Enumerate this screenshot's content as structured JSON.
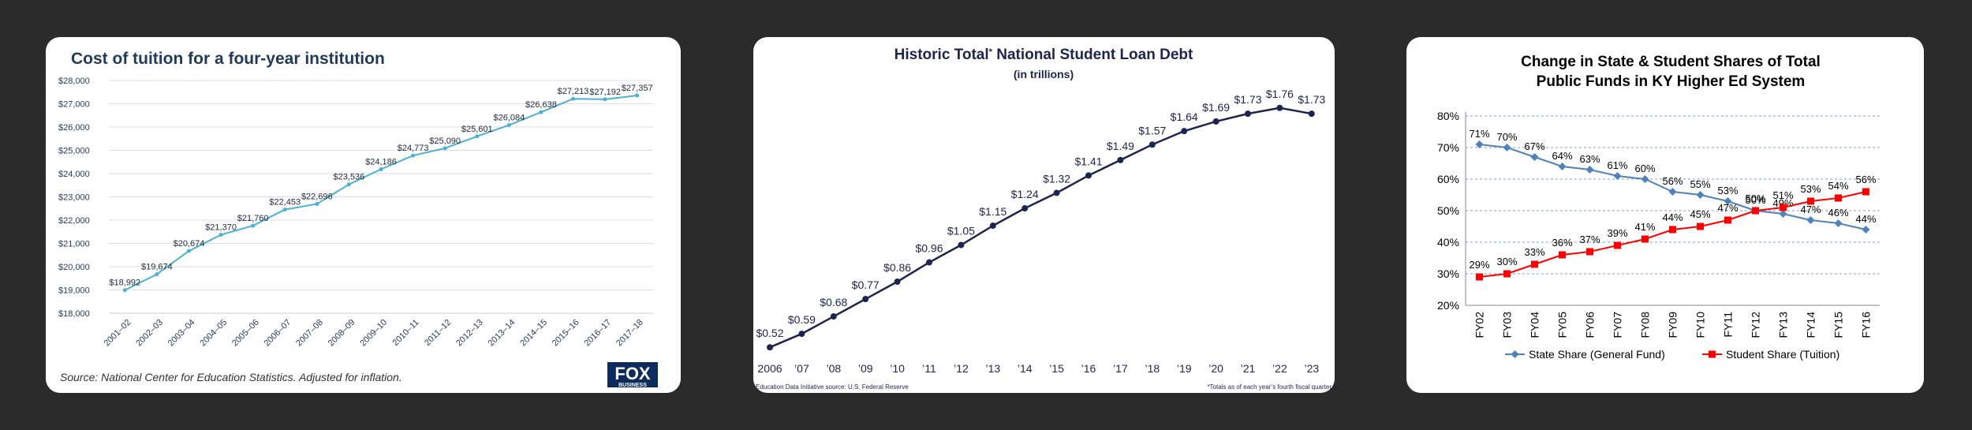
{
  "chart_data": [
    {
      "type": "line",
      "title": "Cost of tuition for a four-year institution",
      "source": "Source: National Center for Education Statistics. Adjusted for inflation.",
      "logo": {
        "text_top": "FOX",
        "text_bottom": "BUSINESS"
      },
      "categories": [
        "2001–02",
        "2002–03",
        "2003–04",
        "2004–05",
        "2005–06",
        "2006–07",
        "2007–08",
        "2008–09",
        "2009–10",
        "2010–11",
        "2011–12",
        "2012–13",
        "2013–14",
        "2014–15",
        "2015–16",
        "2016–17",
        "2017–18"
      ],
      "values": [
        18992,
        19674,
        20674,
        21370,
        21760,
        22453,
        22696,
        23536,
        24186,
        24773,
        25090,
        25601,
        26084,
        26638,
        27213,
        27192,
        27357
      ],
      "data_labels": [
        "$18,992",
        "$19,674",
        "$20,674",
        "$21,370",
        "$21,760",
        "$22,453",
        "$22,696",
        "$23,536",
        "$24,186",
        "$24,773",
        "$25,090",
        "$25,601",
        "$26,084",
        "$26,638",
        "$27,213",
        "$27,192",
        "$27,357"
      ],
      "yticks": [
        18000,
        19000,
        20000,
        21000,
        22000,
        23000,
        24000,
        25000,
        26000,
        27000,
        28000
      ],
      "ytick_labels": [
        "$18,000",
        "$19,000",
        "$20,000",
        "$21,000",
        "$22,000",
        "$23,000",
        "$24,000",
        "$25,000",
        "$26,000",
        "$27,000",
        "$28,000"
      ],
      "ylim": [
        18000,
        28000
      ],
      "grid": true,
      "colors": {
        "line": "#4ab0d6",
        "title": "#1f3a5c"
      }
    },
    {
      "type": "line",
      "title": "Historic Total",
      "title_marker": "*",
      "title_suffix": "National Student Loan Debt",
      "subtitle": "(in trillions)",
      "source_left": "Education Data Initiative source: U.S. Federal Reserve",
      "source_right": "*Totals as of each year’s fourth fiscal quarter",
      "categories": [
        "2006",
        "’07",
        "’08",
        "’09",
        "’10",
        "’11",
        "’12",
        "’13",
        "’14",
        "’15",
        "’16",
        "’17",
        "’18",
        "’19",
        "’20",
        "’21",
        "’22",
        "’23"
      ],
      "values": [
        0.52,
        0.59,
        0.68,
        0.77,
        0.86,
        0.96,
        1.05,
        1.15,
        1.24,
        1.32,
        1.41,
        1.49,
        1.57,
        1.64,
        1.69,
        1.73,
        1.76,
        1.73
      ],
      "data_labels": [
        "$0.52",
        "$0.59",
        "$0.68",
        "$0.77",
        "$0.86",
        "$0.96",
        "$1.05",
        "$1.15",
        "$1.24",
        "$1.32",
        "$1.41",
        "$1.49",
        "$1.57",
        "$1.64",
        "$1.69",
        "$1.73",
        "$1.76",
        "$1.73"
      ],
      "ylim": [
        0.48,
        1.8
      ],
      "grid": false,
      "colors": {
        "line": "#1c2550",
        "title": "#1c2550"
      }
    },
    {
      "type": "line",
      "title_line1": "Change in State & Student Shares of Total",
      "title_line2": "Public Funds in KY Higher Ed System",
      "categories": [
        "FY02",
        "FY03",
        "FY04",
        "FY05",
        "FY06",
        "FY07",
        "FY08",
        "FY09",
        "FY10",
        "FY11",
        "FY12",
        "FY13",
        "FY14",
        "FY15",
        "FY16"
      ],
      "series": [
        {
          "name": "State Share (General Fund)",
          "values": [
            71,
            70,
            67,
            64,
            63,
            61,
            60,
            56,
            55,
            53,
            50,
            49,
            47,
            46,
            44
          ],
          "labels": [
            "71%",
            "70%",
            "67%",
            "64%",
            "63%",
            "61%",
            "60%",
            "56%",
            "55%",
            "53%",
            "50%",
            "49%",
            "47%",
            "46%",
            "44%"
          ],
          "color": "#4f81bd"
        },
        {
          "name": "Student Share (Tuition)",
          "values": [
            29,
            30,
            33,
            36,
            37,
            39,
            41,
            44,
            45,
            47,
            50,
            51,
            53,
            54,
            56
          ],
          "labels": [
            "29%",
            "30%",
            "33%",
            "36%",
            "37%",
            "39%",
            "41%",
            "44%",
            "45%",
            "47%",
            "50%",
            "51%",
            "53%",
            "54%",
            "56%"
          ],
          "color": "#ff0000"
        }
      ],
      "yticks": [
        20,
        30,
        40,
        50,
        60,
        70,
        80
      ],
      "ytick_labels": [
        "20%",
        "30%",
        "40%",
        "50%",
        "60%",
        "70%",
        "80%"
      ],
      "ylim": [
        20,
        80
      ],
      "grid": true,
      "legend": "bottom"
    }
  ]
}
